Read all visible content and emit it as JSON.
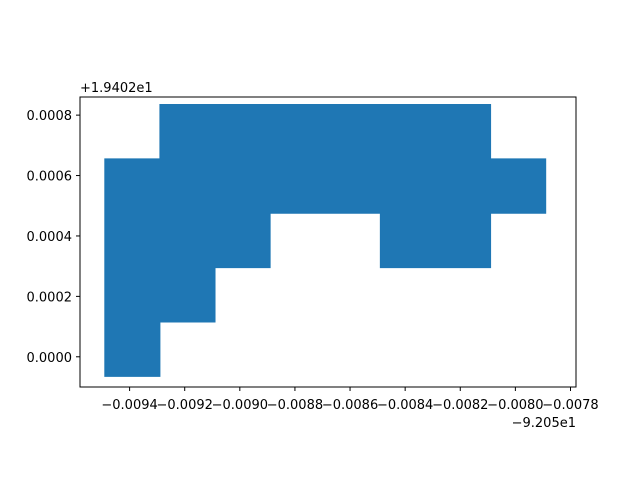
{
  "chart_data": {
    "type": "area",
    "title": "",
    "xlabel": "",
    "ylabel": "",
    "x_offset_label": "−9.205e1",
    "y_offset_label": "+1.9402e1",
    "xlim": [
      -0.00958,
      -0.00778
    ],
    "ylim": [
      -0.0001,
      0.00086
    ],
    "grid": false,
    "series": [
      {
        "fill_color": "#1f77b4",
        "polygon": [
          [
            -0.00949,
            -6.5e-05
          ],
          [
            -0.00929,
            -6.5e-05
          ],
          [
            -0.00929,
            0.000115
          ],
          [
            -0.00909,
            0.000115
          ],
          [
            -0.00909,
            0.000295
          ],
          [
            -0.00889,
            0.000295
          ],
          [
            -0.00889,
            0.000475
          ],
          [
            -0.00849,
            0.000475
          ],
          [
            -0.00849,
            0.000295
          ],
          [
            -0.00809,
            0.000295
          ],
          [
            -0.00809,
            0.000475
          ],
          [
            -0.00789,
            0.000475
          ],
          [
            -0.00789,
            0.000655
          ],
          [
            -0.00809,
            0.000655
          ],
          [
            -0.00809,
            0.000835
          ],
          [
            -0.00929,
            0.000835
          ],
          [
            -0.00929,
            0.000655
          ],
          [
            -0.00949,
            0.000655
          ]
        ]
      }
    ],
    "x_ticks": [
      {
        "value": -0.0094,
        "label": "−0.0094"
      },
      {
        "value": -0.0092,
        "label": "−0.0092"
      },
      {
        "value": -0.009,
        "label": "−0.0090"
      },
      {
        "value": -0.0088,
        "label": "−0.0088"
      },
      {
        "value": -0.0086,
        "label": "−0.0086"
      },
      {
        "value": -0.0084,
        "label": "−0.0084"
      },
      {
        "value": -0.0082,
        "label": "−0.0082"
      },
      {
        "value": -0.008,
        "label": "−0.0080"
      },
      {
        "value": -0.0078,
        "label": "−0.0078"
      }
    ],
    "y_ticks": [
      {
        "value": 0.0,
        "label": "0.0000"
      },
      {
        "value": 0.0002,
        "label": "0.0002"
      },
      {
        "value": 0.0004,
        "label": "0.0004"
      },
      {
        "value": 0.0006,
        "label": "0.0006"
      },
      {
        "value": 0.0008,
        "label": "0.0008"
      }
    ]
  }
}
